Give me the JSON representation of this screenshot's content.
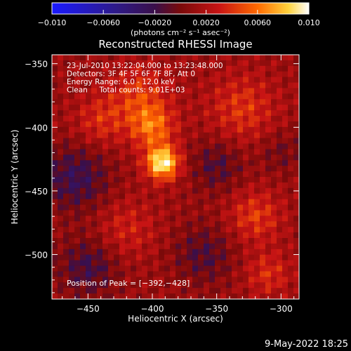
{
  "chart_data": {
    "type": "heatmap",
    "title": "Reconstructed RHESSI Image",
    "xlabel": "Heliocentric X (arcsec)",
    "ylabel": "Heliocentric Y (arcsec)",
    "xlim": [
      -478,
      -286
    ],
    "ylim": [
      -535,
      -343
    ],
    "xticks": [
      -450,
      -400,
      -350,
      -300
    ],
    "xtick_labels": [
      "−450",
      "−400",
      "−350",
      "−300"
    ],
    "yticks": [
      -350,
      -400,
      -450,
      -500
    ],
    "ytick_labels": [
      "−350",
      "−400",
      "−450",
      "−500"
    ],
    "colorbar": {
      "min": -0.01,
      "max": 0.01,
      "ticks": [
        -0.01,
        -0.006,
        -0.002,
        0.002,
        0.006,
        0.01
      ],
      "tick_labels": [
        "−0.010",
        "−0.0060",
        "−0.0020",
        "0.0020",
        "0.0060",
        "0.010"
      ],
      "unit_label": "(photons cm⁻² s⁻¹ asec⁻²)"
    },
    "annotations": [
      "23-Jul-2010 13:22:04.000 to 13:23:48.000",
      "Detectors: 3F 4F 5F 6F 7F 8F, Att 0",
      "Energy Range: 6.0 - 12.0 keV",
      "Clean     Total counts: 9.01E+03"
    ],
    "peak_label": "Position of Peak = [−392,−428]",
    "peak": {
      "x": -392,
      "y": -428,
      "value": 0.0095
    },
    "sources": [
      {
        "x": -392,
        "y": -428,
        "amp": 0.0085,
        "width": 9
      },
      {
        "x": -400,
        "y": -400,
        "amp": 0.0045,
        "width": 12
      },
      {
        "x": -410,
        "y": -375,
        "amp": 0.003,
        "width": 16
      },
      {
        "x": -440,
        "y": -395,
        "amp": 0.0025,
        "width": 14
      },
      {
        "x": -330,
        "y": -385,
        "amp": 0.0028,
        "width": 18
      },
      {
        "x": -320,
        "y": -470,
        "amp": 0.003,
        "width": 14
      },
      {
        "x": -310,
        "y": -515,
        "amp": 0.0025,
        "width": 12
      },
      {
        "x": -420,
        "y": -480,
        "amp": 0.002,
        "width": 16
      },
      {
        "x": -460,
        "y": -440,
        "amp": -0.0035,
        "width": 18
      },
      {
        "x": -350,
        "y": -430,
        "amp": -0.0025,
        "width": 14
      },
      {
        "x": -360,
        "y": -500,
        "amp": -0.0025,
        "width": 16
      },
      {
        "x": -450,
        "y": -510,
        "amp": -0.003,
        "width": 16
      },
      {
        "x": -300,
        "y": -420,
        "amp": -0.0015,
        "width": 12
      }
    ],
    "background": 0.0012
  },
  "footer": {
    "date": "9-May-2022 18:25"
  }
}
